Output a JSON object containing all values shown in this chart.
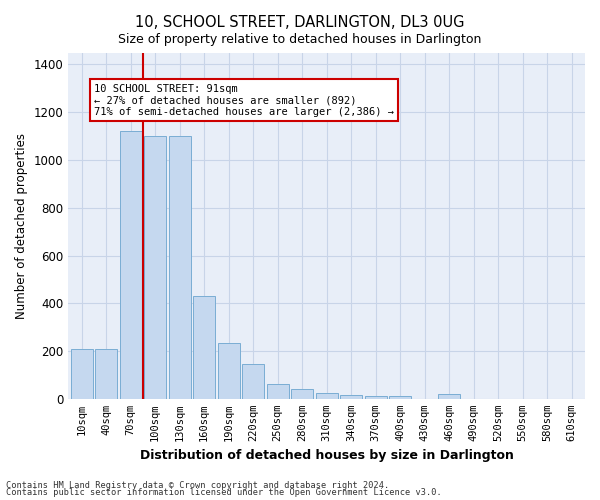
{
  "title": "10, SCHOOL STREET, DARLINGTON, DL3 0UG",
  "subtitle": "Size of property relative to detached houses in Darlington",
  "xlabel": "Distribution of detached houses by size in Darlington",
  "ylabel": "Number of detached properties",
  "bar_color": "#c5d8ef",
  "bar_edge_color": "#7aadd4",
  "grid_color": "#c8d4e8",
  "background_color": "#e8eef8",
  "categories": [
    "10sqm",
    "40sqm",
    "70sqm",
    "100sqm",
    "130sqm",
    "160sqm",
    "190sqm",
    "220sqm",
    "250sqm",
    "280sqm",
    "310sqm",
    "340sqm",
    "370sqm",
    "400sqm",
    "430sqm",
    "460sqm",
    "490sqm",
    "520sqm",
    "550sqm",
    "580sqm",
    "610sqm"
  ],
  "values": [
    210,
    210,
    1120,
    1100,
    1100,
    430,
    235,
    145,
    60,
    40,
    25,
    15,
    10,
    10,
    0,
    20,
    0,
    0,
    0,
    0,
    0
  ],
  "vline_x_index": 2.5,
  "vline_color": "#cc0000",
  "annotation_text": "10 SCHOOL STREET: 91sqm\n← 27% of detached houses are smaller (892)\n71% of semi-detached houses are larger (2,386) →",
  "annotation_box_color": "#ffffff",
  "annotation_box_edge": "#cc0000",
  "ylim": [
    0,
    1450
  ],
  "yticks": [
    0,
    200,
    400,
    600,
    800,
    1000,
    1200,
    1400
  ],
  "footer1": "Contains HM Land Registry data © Crown copyright and database right 2024.",
  "footer2": "Contains public sector information licensed under the Open Government Licence v3.0."
}
